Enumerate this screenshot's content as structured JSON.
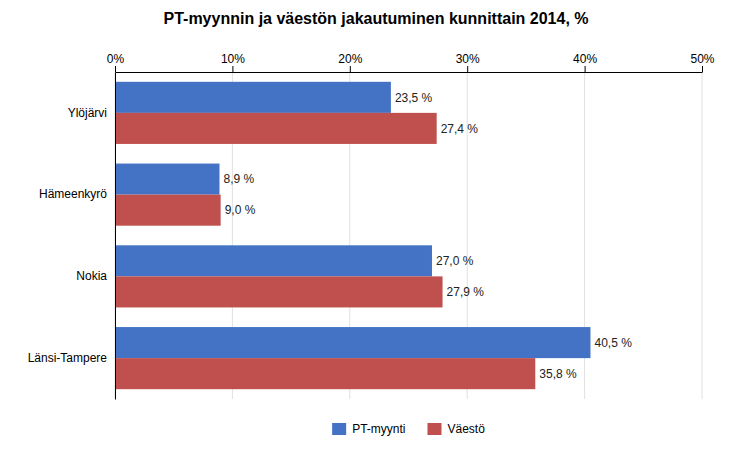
{
  "chart_data": {
    "type": "bar",
    "orientation": "horizontal",
    "title": "PT-myynnin ja väestön jakautuminen kunnittain 2014, %",
    "categories": [
      "Länsi-Tampere",
      "Nokia",
      "Hämeenkyrö",
      "Ylöjärvi"
    ],
    "series": [
      {
        "name": "PT-myynti",
        "color": "#4472C4",
        "values": [
          40.5,
          27.0,
          8.9,
          23.5
        ],
        "value_labels": [
          "40,5 %",
          "27,0 %",
          "8,9 %",
          "23,5 %"
        ]
      },
      {
        "name": "Väestö",
        "color": "#C0504D",
        "values": [
          35.8,
          27.9,
          9.0,
          27.4
        ],
        "value_labels": [
          "35,8 %",
          "27,9 %",
          "9,0 %",
          "27,4 %"
        ]
      }
    ],
    "xlim": [
      0,
      50
    ],
    "xticks": [
      {
        "value": 0,
        "label": "0%"
      },
      {
        "value": 10,
        "label": "10%"
      },
      {
        "value": 20,
        "label": "20%"
      },
      {
        "value": 30,
        "label": "30%"
      },
      {
        "value": 40,
        "label": "40%"
      },
      {
        "value": 50,
        "label": "50%"
      }
    ],
    "grid": true,
    "legend": "bottom",
    "data_labels": true
  }
}
